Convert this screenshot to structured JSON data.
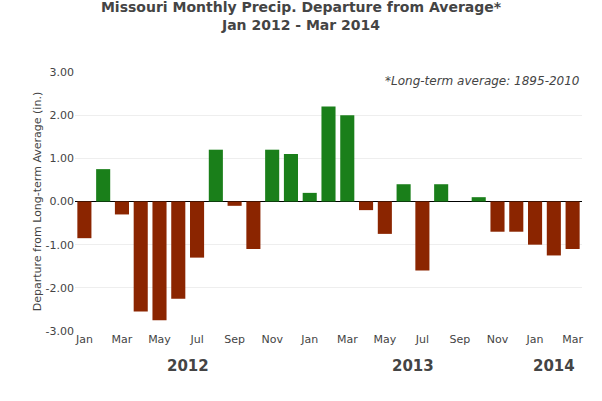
{
  "chart_data": {
    "type": "bar",
    "title": "Missouri Monthly Precip. Departure from Average*",
    "subtitle": "Jan 2012 - Mar 2014",
    "annotation": "*Long-term average: 1895-2010",
    "group_labels": [
      "2012",
      "2013",
      "2014"
    ],
    "ylabel": "Departure from Long-term Average (in.)",
    "categories": [
      "Jan",
      null,
      "Mar",
      null,
      "May",
      null,
      "Jul",
      null,
      "Sep",
      null,
      "Nov",
      null,
      "Jan",
      null,
      "Mar",
      null,
      "May",
      null,
      "Jul",
      null,
      "Sep",
      null,
      "Nov",
      null,
      "Jan",
      null,
      "Mar"
    ],
    "values": [
      -0.85,
      0.75,
      -0.3,
      -2.55,
      -2.75,
      -2.25,
      -1.3,
      1.2,
      -0.1,
      -1.1,
      1.2,
      1.1,
      0.2,
      2.2,
      2.0,
      -0.2,
      -0.75,
      0.4,
      -1.6,
      0.4,
      0.0,
      0.1,
      -0.7,
      -0.7,
      -1.0,
      -1.25,
      -1.1
    ],
    "colors": [
      "#8b2500",
      "#1a7f1a",
      "#8b2500",
      "#8b2500",
      "#8b2500",
      "#8b2500",
      "#8b2500",
      "#1a7f1a",
      "#8b2500",
      "#8b2500",
      "#1a7f1a",
      "#1a7f1a",
      "#1a7f1a",
      "#1a7f1a",
      "#1a7f1a",
      "#8b2500",
      "#8b2500",
      "#1a7f1a",
      "#8b2500",
      "#1a7f1a",
      "#1a7f1a",
      "#1a7f1a",
      "#8b2500",
      "#8b2500",
      "#8b2500",
      "#8b2500",
      "#8b2500"
    ],
    "ylim": [
      -3.0,
      3.0
    ],
    "yticks": [
      {
        "value": -3.0,
        "label": "-3.00"
      },
      {
        "value": -2.0,
        "label": "-2.00"
      },
      {
        "value": -1.0,
        "label": "-1.00"
      },
      {
        "value": 0.0,
        "label": "0.00"
      },
      {
        "value": 1.0,
        "label": "1.00"
      },
      {
        "value": 2.0,
        "label": "2.00"
      },
      {
        "value": 3.0,
        "label": "3.00"
      }
    ],
    "grid": true
  }
}
